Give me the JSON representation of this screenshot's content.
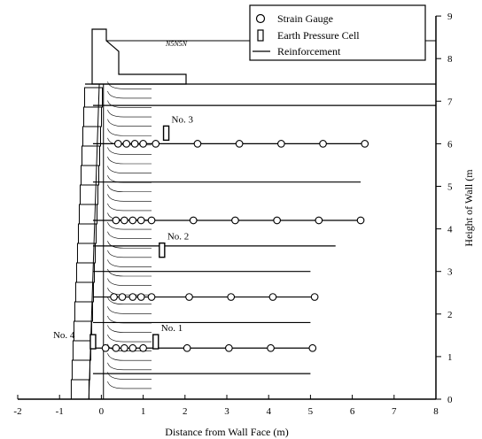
{
  "figure": {
    "x_axis": {
      "label": "Distance from Wall Face (m)",
      "min": -2,
      "max": 8,
      "ticks": [
        "-2",
        "-1",
        "0",
        "1",
        "2",
        "3",
        "4",
        "5",
        "6",
        "7",
        "8"
      ]
    },
    "y_axis": {
      "label": "Height of Wall (m",
      "min": 0,
      "max": 9,
      "ticks": [
        "0",
        "1",
        "2",
        "3",
        "4",
        "5",
        "6",
        "7",
        "8",
        "9"
      ]
    },
    "surcharge_label": "N5N5N",
    "legend": {
      "strain_gauge": "Strain Gauge",
      "earth_pressure_cell": "Earth Pressure Cell",
      "reinforcement": "Reinforcement"
    }
  },
  "reinforcement_layers": [
    {
      "y": 0.6,
      "x_end": 5.0
    },
    {
      "y": 1.2,
      "x_end": 5.0
    },
    {
      "y": 1.8,
      "x_end": 5.0
    },
    {
      "y": 2.4,
      "x_end": 5.1
    },
    {
      "y": 3.0,
      "x_end": 5.0
    },
    {
      "y": 3.6,
      "x_end": 5.6
    },
    {
      "y": 4.2,
      "x_end": 6.2
    },
    {
      "y": 5.1,
      "x_end": 6.2
    },
    {
      "y": 6.0,
      "x_end": 6.3
    },
    {
      "y": 6.9,
      "x_end": 8.0
    }
  ],
  "strain_gauges": [
    {
      "y": 1.2,
      "x": [
        0.1,
        0.35,
        0.55,
        0.75,
        1.0,
        2.05,
        3.05,
        4.05,
        5.05
      ]
    },
    {
      "y": 2.4,
      "x": [
        0.3,
        0.5,
        0.75,
        0.95,
        1.2,
        2.1,
        3.1,
        4.1,
        5.1
      ]
    },
    {
      "y": 4.2,
      "x": [
        0.35,
        0.55,
        0.75,
        0.95,
        1.2,
        2.2,
        3.2,
        4.2,
        5.2,
        6.2
      ]
    },
    {
      "y": 6.0,
      "x": [
        0.4,
        0.6,
        0.8,
        1.0,
        1.3,
        2.3,
        3.3,
        4.3,
        5.3,
        6.3
      ]
    }
  ],
  "pressure_cells": [
    {
      "label": "No. 1",
      "x": 1.3,
      "y": 1.35
    },
    {
      "label": "No. 2",
      "x": 1.45,
      "y": 3.5
    },
    {
      "label": "No. 3",
      "x": 1.55,
      "y": 6.25
    },
    {
      "label": "No. 4",
      "x": -0.2,
      "y": 1.35
    }
  ]
}
